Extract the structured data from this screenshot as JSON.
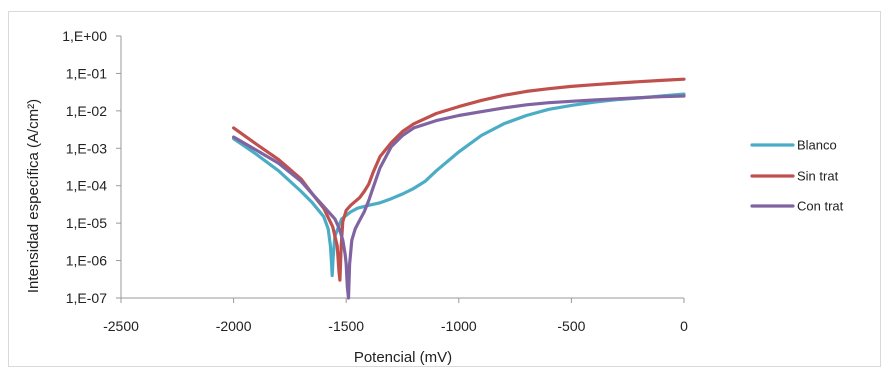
{
  "chart_data": {
    "type": "line",
    "title": "",
    "xlabel": "Potencial (mV)",
    "ylabel": "Intensidad específica (A/cm²)",
    "xlim": [
      -2500,
      0
    ],
    "ylim": [
      1e-07,
      1
    ],
    "yscale": "log",
    "x_ticks": [
      -2500,
      -2000,
      -1500,
      -1000,
      -500,
      0
    ],
    "x_tick_labels": [
      "-2500",
      "-2000",
      "-1500",
      "-1000",
      "-500",
      "0"
    ],
    "y_ticks": [
      1,
      0.1,
      0.01,
      0.001,
      0.0001,
      1e-05,
      1e-06,
      1e-07
    ],
    "y_tick_labels": [
      "1,E+00",
      "1,E-01",
      "1,E-02",
      "1,E-03",
      "1,E-04",
      "1,E-05",
      "1,E-06",
      "1,E-07"
    ],
    "grid": false,
    "legend_position": "right",
    "series": [
      {
        "name": "Blanco",
        "color": "#4bacc6",
        "x": [
          -2000,
          -1900,
          -1800,
          -1700,
          -1650,
          -1600,
          -1580,
          -1570,
          -1565,
          -1562,
          -1558,
          -1550,
          -1520,
          -1480,
          -1450,
          -1400,
          -1350,
          -1300,
          -1250,
          -1200,
          -1150,
          -1100,
          -1000,
          -900,
          -800,
          -700,
          -600,
          -500,
          -400,
          -300,
          -200,
          -100,
          0
        ],
        "y": [
          0.0018,
          0.0007,
          0.00025,
          7e-05,
          3.5e-05,
          1.5e-05,
          7e-06,
          2.5e-06,
          8e-07,
          4e-07,
          1.2e-06,
          4.5e-06,
          1.3e-05,
          2e-05,
          2.5e-05,
          3e-05,
          3.5e-05,
          4.5e-05,
          6e-05,
          8.5e-05,
          0.00013,
          0.00025,
          0.0008,
          0.0022,
          0.0045,
          0.0075,
          0.011,
          0.014,
          0.017,
          0.02,
          0.022,
          0.025,
          0.028
        ]
      },
      {
        "name": "Sin trat",
        "color": "#c0504d",
        "x": [
          -2000,
          -1900,
          -1800,
          -1700,
          -1650,
          -1600,
          -1560,
          -1540,
          -1532,
          -1528,
          -1522,
          -1515,
          -1500,
          -1480,
          -1460,
          -1440,
          -1420,
          -1400,
          -1380,
          -1350,
          -1300,
          -1250,
          -1200,
          -1100,
          -1000,
          -900,
          -800,
          -700,
          -600,
          -500,
          -400,
          -300,
          -200,
          -100,
          0
        ],
        "y": [
          0.0035,
          0.0013,
          0.0005,
          0.00015,
          6e-05,
          2.5e-05,
          8e-06,
          2.5e-06,
          5e-07,
          3e-07,
          2.5e-06,
          1.1e-05,
          2.2e-05,
          3e-05,
          3.8e-05,
          4.8e-05,
          7e-05,
          0.00011,
          0.00023,
          0.0006,
          0.0014,
          0.0028,
          0.0045,
          0.0085,
          0.013,
          0.019,
          0.026,
          0.033,
          0.039,
          0.045,
          0.05,
          0.055,
          0.06,
          0.065,
          0.07
        ]
      },
      {
        "name": "Con trat",
        "color": "#8064a2",
        "x": [
          -2000,
          -1900,
          -1800,
          -1700,
          -1650,
          -1600,
          -1550,
          -1530,
          -1515,
          -1505,
          -1500,
          -1495,
          -1490,
          -1485,
          -1475,
          -1460,
          -1440,
          -1420,
          -1400,
          -1380,
          -1350,
          -1300,
          -1250,
          -1200,
          -1100,
          -1000,
          -900,
          -800,
          -700,
          -600,
          -500,
          -400,
          -300,
          -200,
          -100,
          0
        ],
        "y": [
          0.002,
          0.0009,
          0.0004,
          0.00013,
          6e-05,
          2.8e-05,
          1.3e-05,
          7e-06,
          3.5e-06,
          1.5e-06,
          8e-07,
          2e-07,
          1e-07,
          8e-07,
          3.5e-06,
          7e-06,
          1.2e-05,
          2e-05,
          4e-05,
          9e-05,
          0.0003,
          0.0011,
          0.0022,
          0.0035,
          0.0055,
          0.0075,
          0.0095,
          0.012,
          0.0145,
          0.0165,
          0.018,
          0.0195,
          0.021,
          0.0225,
          0.024,
          0.025
        ]
      }
    ]
  }
}
